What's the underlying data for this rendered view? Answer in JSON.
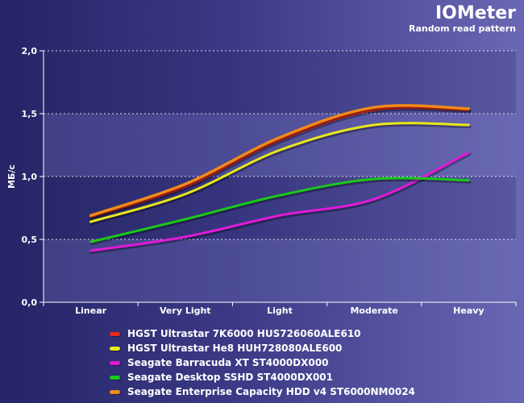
{
  "header": {
    "title": "IOMeter",
    "subtitle": "Random read pattern"
  },
  "colors": {
    "background_left": "#262466",
    "background_right": "#6a68b4",
    "grid": "#ffffff",
    "text": "#ffffff"
  },
  "chart_data": {
    "type": "line",
    "title": "IOMeter",
    "subtitle": "Random read pattern",
    "xlabel": "",
    "ylabel": "МБ/с",
    "categories": [
      "Linear",
      "Very Light",
      "Light",
      "Moderate",
      "Heavy"
    ],
    "ylim": [
      0,
      2
    ],
    "yticks": [
      "0,0",
      "0,5",
      "1,0",
      "1,5",
      "2,0"
    ],
    "grid": true,
    "legend_position": "bottom",
    "series": [
      {
        "name": "HGST Ultrastar 7K6000 HUS726060ALE610",
        "color": "#e8281a",
        "values": [
          0.68,
          0.92,
          1.29,
          1.53,
          1.53
        ]
      },
      {
        "name": "HGST Ultrastar He8 HUH728080ALE600",
        "color": "#e8e81a",
        "values": [
          0.64,
          0.86,
          1.21,
          1.41,
          1.41
        ]
      },
      {
        "name": "Seagate Barracuda XT ST4000DX000",
        "color": "#e01ad8",
        "values": [
          0.41,
          0.52,
          0.69,
          0.82,
          1.19
        ]
      },
      {
        "name": "Seagate Desktop SSHD ST4000DX001",
        "color": "#1ac81a",
        "values": [
          0.48,
          0.66,
          0.85,
          0.98,
          0.97
        ]
      },
      {
        "name": "Seagate Enterprise Capacity HDD v4 ST6000NM0024",
        "color": "#f08a1a",
        "values": [
          0.69,
          0.94,
          1.31,
          1.55,
          1.54
        ]
      }
    ]
  }
}
